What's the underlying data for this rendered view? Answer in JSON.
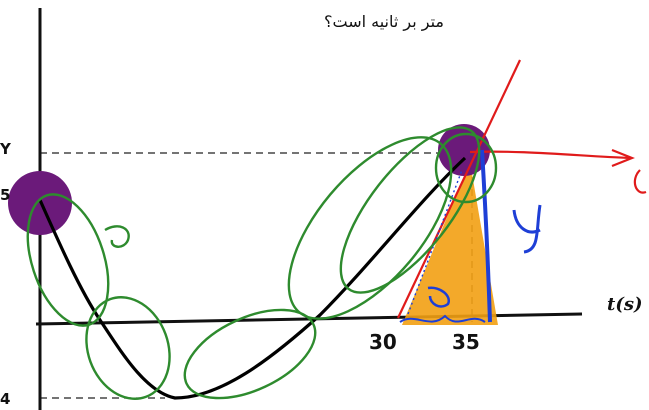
{
  "question_fragment": "متر بر ثانیه است؟",
  "axis": {
    "t_label": "t(s)"
  },
  "ticks": {
    "y_top": "Y",
    "y_mid": "5",
    "y_bottom": "4",
    "x_30": "30",
    "x_35": "35"
  },
  "colors": {
    "axis": "#111111",
    "curve": "#000000",
    "ink_green": "#2e8b2e",
    "ink_blue": "#1e3fd6",
    "ink_red": "#e01b1b",
    "dot_purple": "#6b1a7a",
    "triangle_orange": "#f2a013"
  }
}
